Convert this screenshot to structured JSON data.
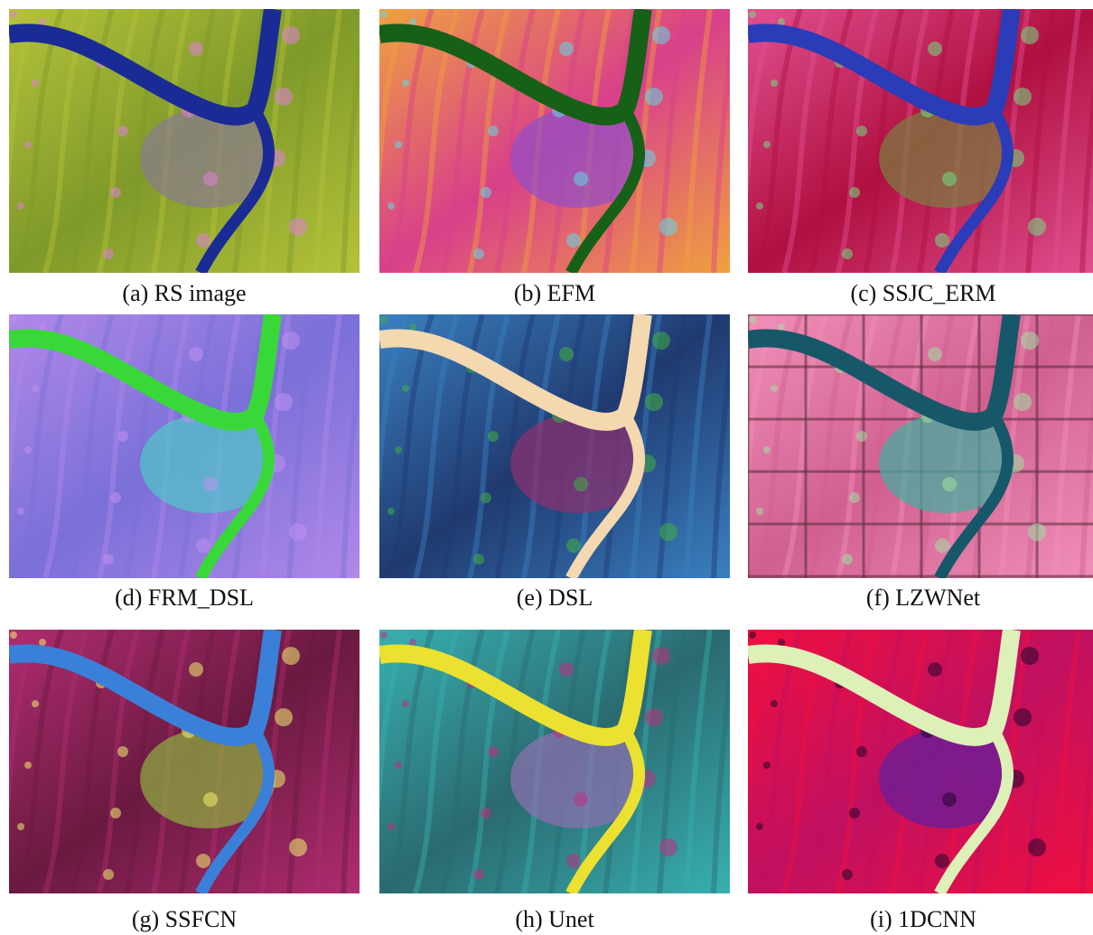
{
  "figure": {
    "panels": [
      {
        "caption": "(a) RS image"
      },
      {
        "caption": "(b) EFM"
      },
      {
        "caption": "(c) SSJC_ERM"
      },
      {
        "caption": "(d) FRM_DSL"
      },
      {
        "caption": "(e) DSL"
      },
      {
        "caption": "(f) LZWNet"
      },
      {
        "caption": "(g) SSFCN"
      },
      {
        "caption": "(h) Unet"
      },
      {
        "caption": "(i) 1DCNN"
      }
    ]
  }
}
